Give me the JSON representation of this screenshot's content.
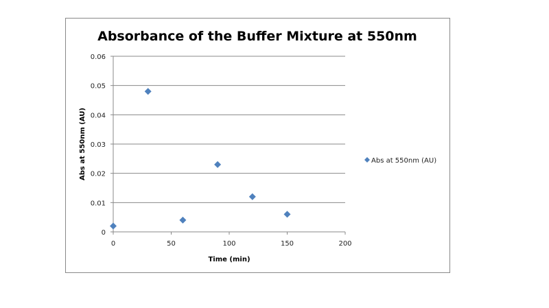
{
  "chart_data": {
    "type": "scatter",
    "title": "Absorbance of the Buffer Mixture at 550nm",
    "xlabel": "Time (min)",
    "ylabel": "Abs at 550nm (AU)",
    "xlim": [
      0,
      200
    ],
    "ylim": [
      0,
      0.06
    ],
    "xticks": [
      "0",
      "50",
      "100",
      "150",
      "200"
    ],
    "yticks": [
      "0",
      "0.01",
      "0.02",
      "0.03",
      "0.04",
      "0.05",
      "0.06"
    ],
    "grid": "horizontal",
    "legend_position": "right",
    "series": [
      {
        "name": "Abs at 550nm (AU)",
        "color": "#4F81BD",
        "marker": "diamond",
        "x": [
          0,
          30,
          60,
          90,
          120,
          150
        ],
        "y": [
          0.002,
          0.048,
          0.004,
          0.023,
          0.012,
          0.006
        ]
      }
    ]
  }
}
